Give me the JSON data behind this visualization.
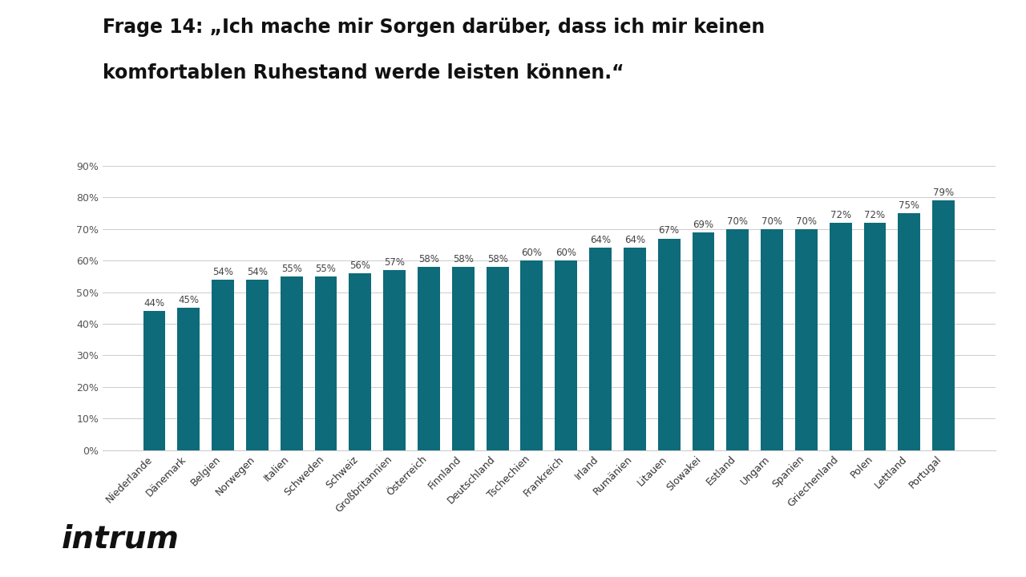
{
  "title_line1": "Frage 14: „Ich mache mir Sorgen darüber, dass ich mir keinen",
  "title_line2": "komfortablen Ruhestand werde leisten können.“",
  "categories": [
    "Niederlande",
    "Dänemark",
    "Belgien",
    "Norwegen",
    "Italien",
    "Schweden",
    "Schweiz",
    "Großbritannien",
    "Österreich",
    "Finnland",
    "Deutschland",
    "Tschechien",
    "Frankreich",
    "Irland",
    "Rumänien",
    "Litauen",
    "Slowakei",
    "Estland",
    "Ungarn",
    "Spanien",
    "Griechenland",
    "Polen",
    "Lettland",
    "Portugal"
  ],
  "values": [
    44,
    45,
    54,
    54,
    55,
    55,
    56,
    57,
    58,
    58,
    58,
    60,
    60,
    64,
    64,
    67,
    69,
    70,
    70,
    70,
    72,
    72,
    75,
    79
  ],
  "bar_color": "#0d6b7a",
  "ylabel_ticks": [
    "0%",
    "10%",
    "20%",
    "30%",
    "40%",
    "50%",
    "60%",
    "70%",
    "80%",
    "90%"
  ],
  "ytick_values": [
    0,
    10,
    20,
    30,
    40,
    50,
    60,
    70,
    80,
    90
  ],
  "ylim": [
    0,
    95
  ],
  "background_color": "#ffffff",
  "title_fontsize": 17,
  "bar_label_fontsize": 8.5,
  "tick_label_fontsize": 9,
  "legend_fontsize": 10,
  "intrum_fontsize": 28
}
